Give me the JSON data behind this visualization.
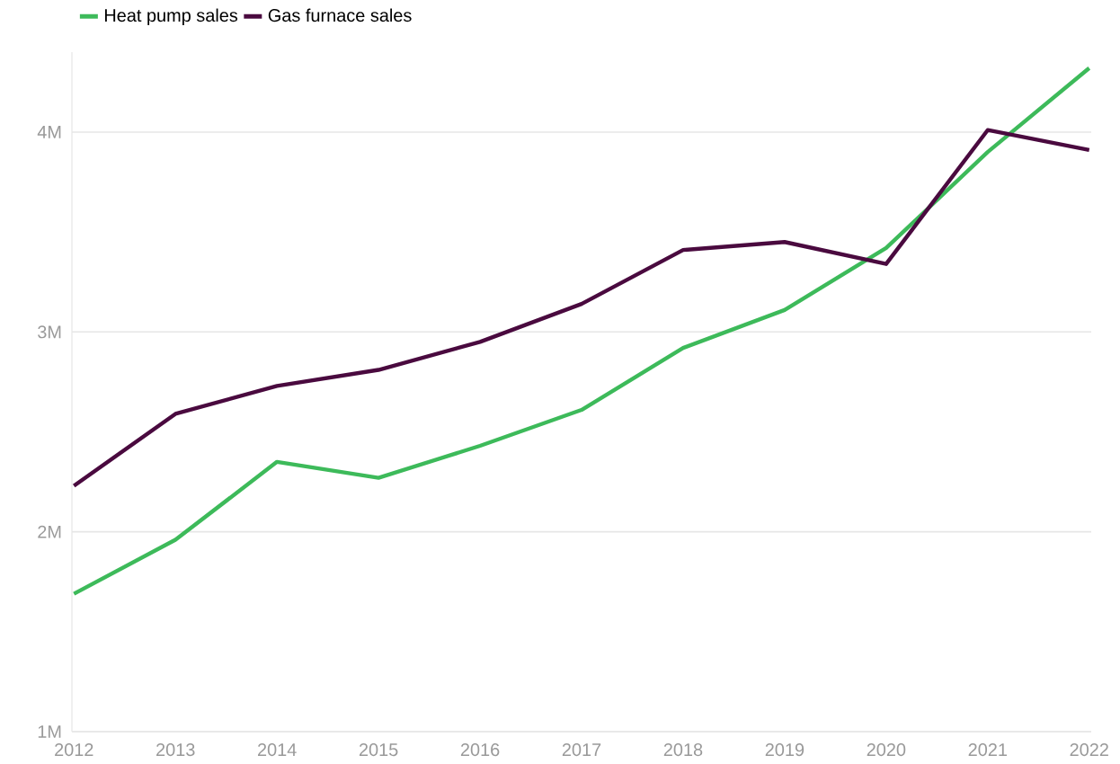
{
  "chart_data": {
    "type": "line",
    "categories": [
      "2012",
      "2013",
      "2014",
      "2015",
      "2016",
      "2017",
      "2018",
      "2019",
      "2020",
      "2021",
      "2022"
    ],
    "series": [
      {
        "name": "Heat pump sales",
        "color": "#3dba5a",
        "values": [
          1.69,
          1.96,
          2.35,
          2.27,
          2.43,
          2.61,
          2.92,
          3.11,
          3.42,
          3.9,
          4.32
        ]
      },
      {
        "name": "Gas furnace sales",
        "color": "#4a0a3f",
        "values": [
          2.23,
          2.59,
          2.73,
          2.81,
          2.95,
          3.14,
          3.41,
          3.45,
          3.34,
          4.01,
          3.91
        ]
      }
    ],
    "yticks": [
      {
        "value": 1,
        "label": "1M"
      },
      {
        "value": 2,
        "label": "2M"
      },
      {
        "value": 3,
        "label": "3M"
      },
      {
        "value": 4,
        "label": "4M"
      }
    ],
    "ylim": [
      1,
      4.4
    ],
    "grid": "y",
    "legend": "top left",
    "marker": "none",
    "line_style": "solid"
  }
}
